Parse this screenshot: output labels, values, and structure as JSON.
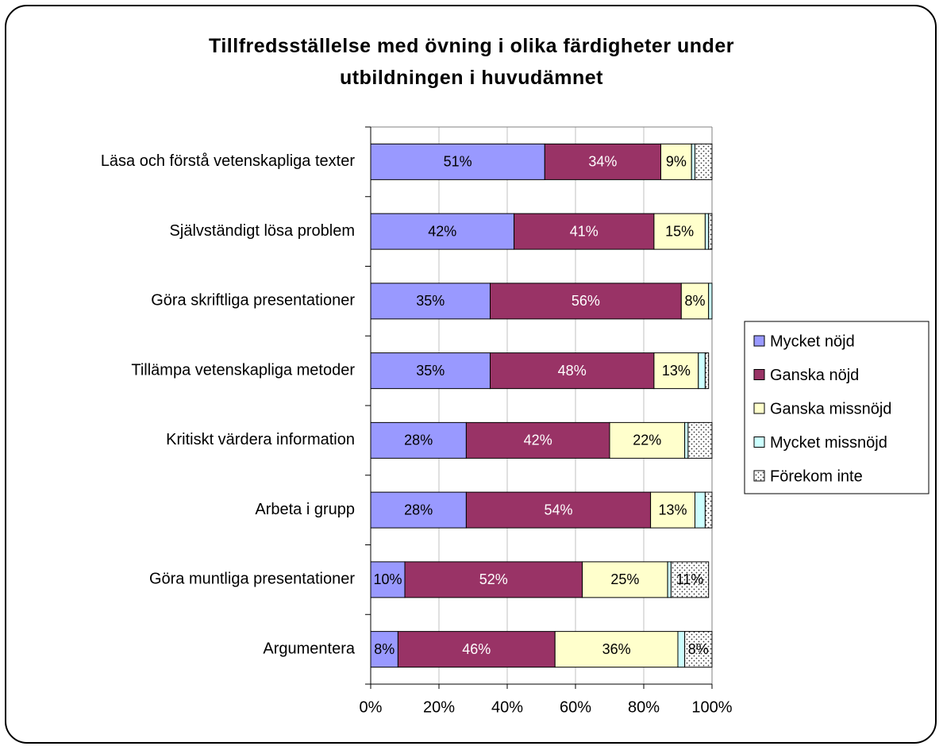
{
  "chart_data": {
    "type": "stacked-barh",
    "title": "Tillfredsställelse med övning i olika färdigheter under utbildningen i huvudämnet",
    "categories": [
      "Läsa och förstå vetenskapliga texter",
      "Självständigt lösa problem",
      "Göra skriftliga presentationer",
      "Tillämpa vetenskapliga metoder",
      "Kritiskt värdera information",
      "Arbeta i grupp",
      "Göra muntliga presentationer",
      "Argumentera"
    ],
    "series": [
      {
        "name": "Mycket nöjd",
        "color": "#9999ff",
        "values": [
          51,
          42,
          35,
          35,
          28,
          28,
          10,
          8
        ],
        "value_labels": [
          "51%",
          "42%",
          "35%",
          "35%",
          "28%",
          "28%",
          "10%",
          "8%"
        ]
      },
      {
        "name": "Ganska nöjd",
        "color": "#993366",
        "values": [
          34,
          41,
          56,
          48,
          42,
          54,
          52,
          46
        ],
        "value_labels": [
          "34%",
          "41%",
          "56%",
          "48%",
          "42%",
          "54%",
          "52%",
          "46%"
        ]
      },
      {
        "name": "Ganska missnöjd",
        "color": "#ffffcc",
        "values": [
          9,
          15,
          8,
          13,
          22,
          13,
          25,
          36
        ],
        "value_labels": [
          "9%",
          "15%",
          "8%",
          "13%",
          "22%",
          "13%",
          "25%",
          "36%"
        ]
      },
      {
        "name": "Mycket missnöjd",
        "color": "#ccffff",
        "values": [
          1,
          1,
          1,
          2,
          1,
          3,
          1,
          2
        ]
      },
      {
        "name": "Förekom inte",
        "color": "#ffffff",
        "pattern": "dots",
        "values": [
          5,
          1,
          0,
          1,
          7,
          2,
          11,
          8
        ],
        "value_labels": [
          null,
          null,
          null,
          null,
          null,
          null,
          "11%",
          "8%"
        ]
      }
    ],
    "xlim": [
      0,
      100
    ],
    "xticks": [
      {
        "value": 0,
        "label": "0%"
      },
      {
        "value": 20,
        "label": "20%"
      },
      {
        "value": 40,
        "label": "40%"
      },
      {
        "value": 60,
        "label": "60%"
      },
      {
        "value": 80,
        "label": "80%"
      },
      {
        "value": 100,
        "label": "100%"
      }
    ],
    "grid": true,
    "legend": "right"
  }
}
